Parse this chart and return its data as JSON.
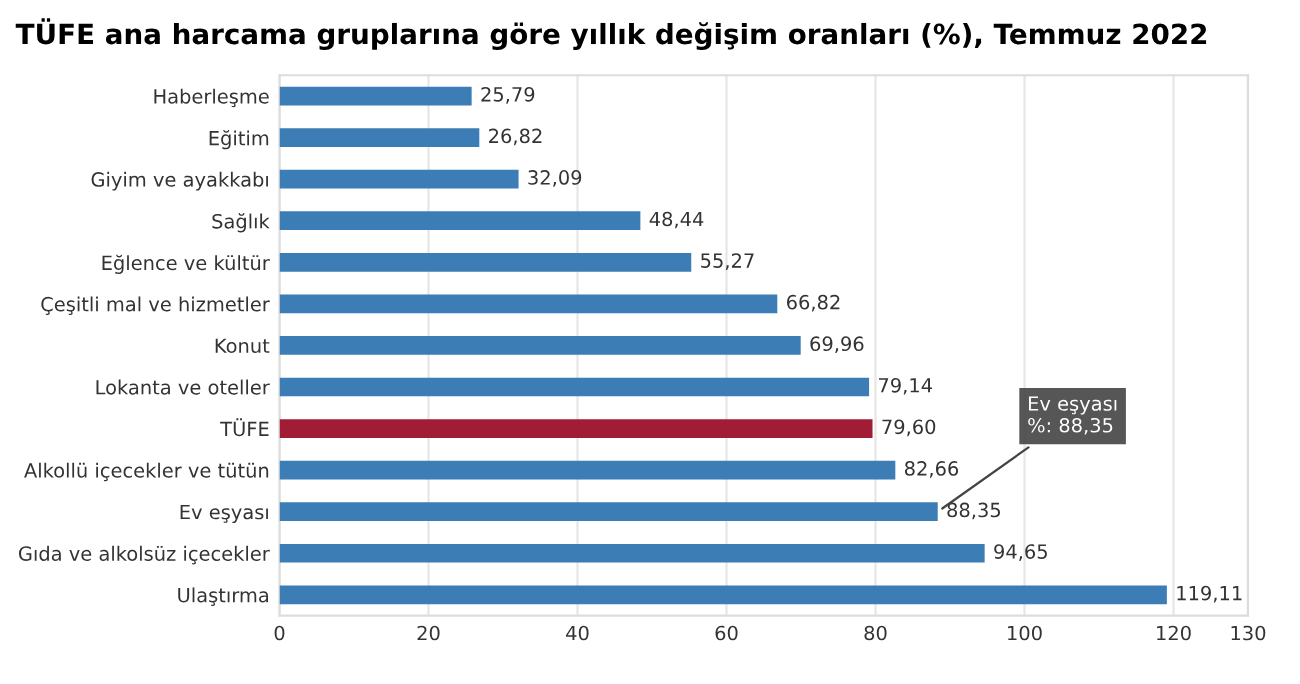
{
  "chart_data": {
    "type": "bar",
    "orientation": "horizontal",
    "title": "TÜFE ana harcama gruplarına göre yıllık değişim oranları (%), Temmuz 2022",
    "categories": [
      "Haberleşme",
      "Eğitim",
      "Giyim ve ayakkabı",
      "Sağlık",
      "Eğlence ve kültür",
      "Çeşitli mal ve hizmetler",
      "Konut",
      "Lokanta ve oteller",
      "TÜFE",
      "Alkollü içecekler ve tütün",
      "Ev eşyası",
      "Gıda ve alkolsüz içecekler",
      "Ulaştırma"
    ],
    "values": [
      25.79,
      26.82,
      32.09,
      48.44,
      55.27,
      66.82,
      69.96,
      79.14,
      79.6,
      82.66,
      88.35,
      94.65,
      119.11
    ],
    "value_labels": [
      "25,79",
      "26,82",
      "32,09",
      "48,44",
      "55,27",
      "66,82",
      "69,96",
      "79,14",
      "79,60",
      "82,66",
      "88,35",
      "94,65",
      "119,11"
    ],
    "colors": [
      "#3b7db4",
      "#3b7db4",
      "#3b7db4",
      "#3b7db4",
      "#3b7db4",
      "#3b7db4",
      "#3b7db4",
      "#3b7db4",
      "#a11d35",
      "#3b7db4",
      "#3b7db4",
      "#3b7db4",
      "#3b7db4"
    ],
    "xlim": [
      0,
      130
    ],
    "xticks": [
      0,
      20,
      40,
      60,
      80,
      100,
      120,
      130
    ],
    "grid": "x",
    "legend": false,
    "annotations": [
      {
        "text": "Ev eşyası\n%: 88,35",
        "x": 88.35,
        "y": "Ev eşyası"
      }
    ]
  }
}
